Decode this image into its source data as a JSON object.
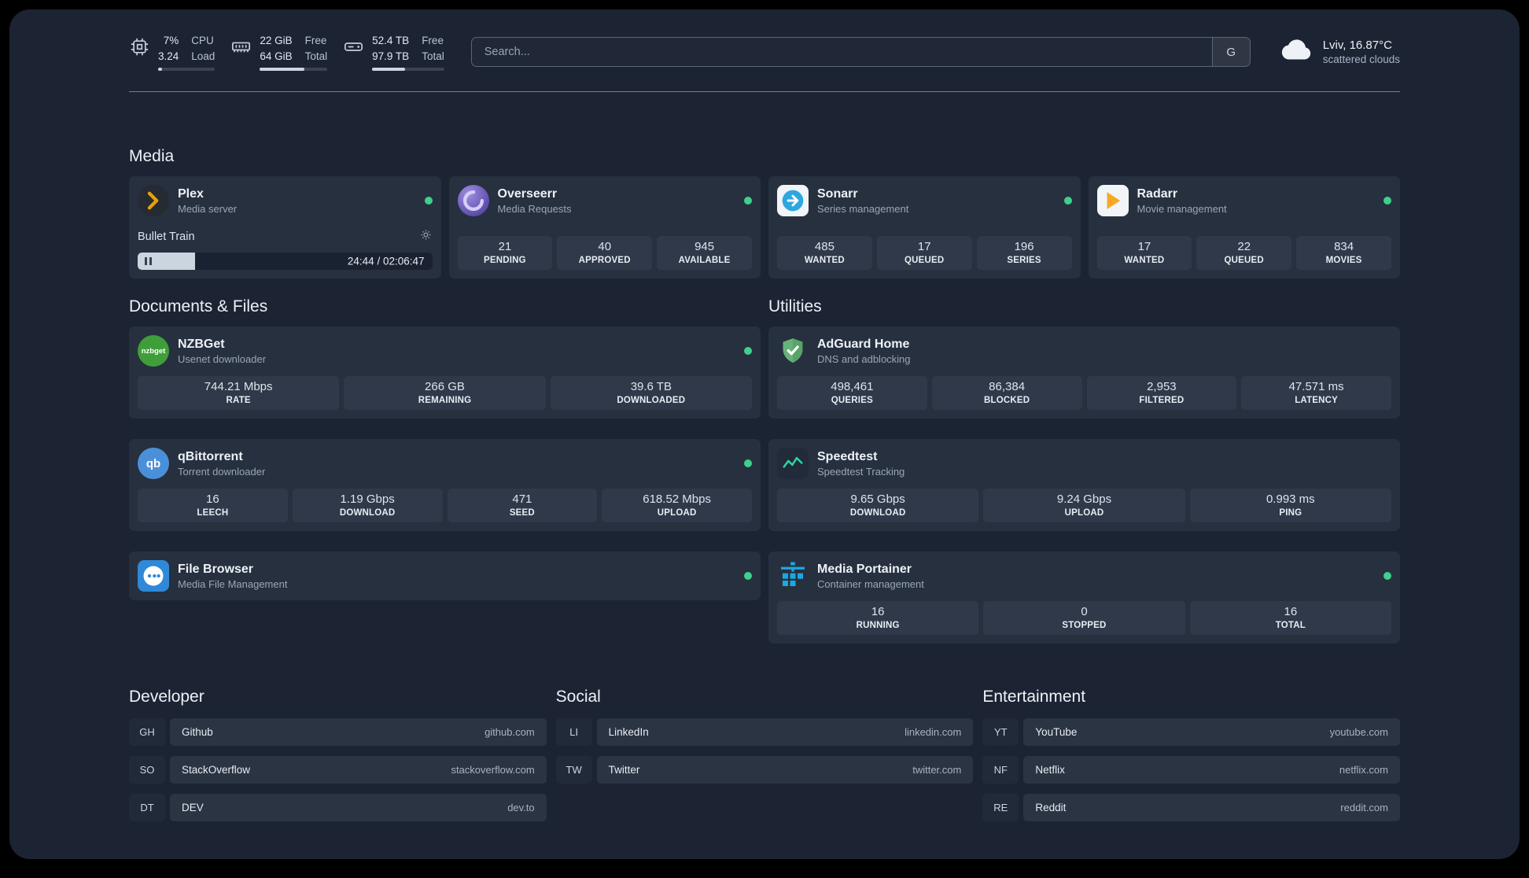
{
  "header": {
    "cpu": {
      "values": [
        "7%",
        "3.24"
      ],
      "labels": [
        "CPU",
        "Load"
      ],
      "percent": 7
    },
    "memory": {
      "values": [
        "22 GiB",
        "64 GiB"
      ],
      "labels": [
        "Free",
        "Total"
      ],
      "percent": 66
    },
    "disk": {
      "values": [
        "52.4 TB",
        "97.9 TB"
      ],
      "labels": [
        "Free",
        "Total"
      ],
      "percent": 46
    },
    "search": {
      "placeholder": "Search...",
      "provider_button": "G"
    },
    "weather": {
      "location": "Lviv, 16.87°C",
      "condition": "scattered clouds"
    }
  },
  "icon_labels": {
    "nzbget": "nzbget",
    "qbittorrent": "qb"
  },
  "media": {
    "heading": "Media",
    "plex": {
      "name": "Plex",
      "subtitle": "Media server",
      "now_playing": "Bullet Train",
      "time": "24:44 / 02:06:47",
      "progress_percent": 19.5
    },
    "overseerr": {
      "name": "Overseerr",
      "subtitle": "Media Requests",
      "stats": [
        {
          "value": "21",
          "label": "PENDING"
        },
        {
          "value": "40",
          "label": "APPROVED"
        },
        {
          "value": "945",
          "label": "AVAILABLE"
        }
      ]
    },
    "sonarr": {
      "name": "Sonarr",
      "subtitle": "Series management",
      "stats": [
        {
          "value": "485",
          "label": "WANTED"
        },
        {
          "value": "17",
          "label": "QUEUED"
        },
        {
          "value": "196",
          "label": "SERIES"
        }
      ]
    },
    "radarr": {
      "name": "Radarr",
      "subtitle": "Movie management",
      "stats": [
        {
          "value": "17",
          "label": "WANTED"
        },
        {
          "value": "22",
          "label": "QUEUED"
        },
        {
          "value": "834",
          "label": "MOVIES"
        }
      ]
    }
  },
  "documents": {
    "heading": "Documents & Files",
    "nzbget": {
      "name": "NZBGet",
      "subtitle": "Usenet downloader",
      "stats": [
        {
          "value": "744.21 Mbps",
          "label": "RATE"
        },
        {
          "value": "266 GB",
          "label": "REMAINING"
        },
        {
          "value": "39.6 TB",
          "label": "DOWNLOADED"
        }
      ]
    },
    "qbittorrent": {
      "name": "qBittorrent",
      "subtitle": "Torrent downloader",
      "stats": [
        {
          "value": "16",
          "label": "LEECH"
        },
        {
          "value": "1.19 Gbps",
          "label": "DOWNLOAD"
        },
        {
          "value": "471",
          "label": "SEED"
        },
        {
          "value": "618.52 Mbps",
          "label": "UPLOAD"
        }
      ]
    },
    "filebrowser": {
      "name": "File Browser",
      "subtitle": "Media File Management"
    }
  },
  "utilities": {
    "heading": "Utilities",
    "adguard": {
      "name": "AdGuard Home",
      "subtitle": "DNS and adblocking",
      "stats": [
        {
          "value": "498,461",
          "label": "QUERIES"
        },
        {
          "value": "86,384",
          "label": "BLOCKED"
        },
        {
          "value": "2,953",
          "label": "FILTERED"
        },
        {
          "value": "47.571 ms",
          "label": "LATENCY"
        }
      ]
    },
    "speedtest": {
      "name": "Speedtest",
      "subtitle": "Speedtest Tracking",
      "stats": [
        {
          "value": "9.65 Gbps",
          "label": "DOWNLOAD"
        },
        {
          "value": "9.24 Gbps",
          "label": "UPLOAD"
        },
        {
          "value": "0.993 ms",
          "label": "PING"
        }
      ]
    },
    "portainer": {
      "name": "Media Portainer",
      "subtitle": "Container management",
      "stats": [
        {
          "value": "16",
          "label": "RUNNING"
        },
        {
          "value": "0",
          "label": "STOPPED"
        },
        {
          "value": "16",
          "label": "TOTAL"
        }
      ]
    }
  },
  "bookmarks": {
    "developer": {
      "heading": "Developer",
      "items": [
        {
          "abbr": "GH",
          "name": "Github",
          "domain": "github.com"
        },
        {
          "abbr": "SO",
          "name": "StackOverflow",
          "domain": "stackoverflow.com"
        },
        {
          "abbr": "DT",
          "name": "DEV",
          "domain": "dev.to"
        }
      ]
    },
    "social": {
      "heading": "Social",
      "items": [
        {
          "abbr": "LI",
          "name": "LinkedIn",
          "domain": "linkedin.com"
        },
        {
          "abbr": "TW",
          "name": "Twitter",
          "domain": "twitter.com"
        }
      ]
    },
    "entertainment": {
      "heading": "Entertainment",
      "items": [
        {
          "abbr": "YT",
          "name": "YouTube",
          "domain": "youtube.com"
        },
        {
          "abbr": "NF",
          "name": "Netflix",
          "domain": "netflix.com"
        },
        {
          "abbr": "RE",
          "name": "Reddit",
          "domain": "reddit.com"
        }
      ]
    }
  },
  "colors": {
    "status_green": "#3ed08c",
    "background": "#1c2433",
    "card": "#27303f"
  }
}
